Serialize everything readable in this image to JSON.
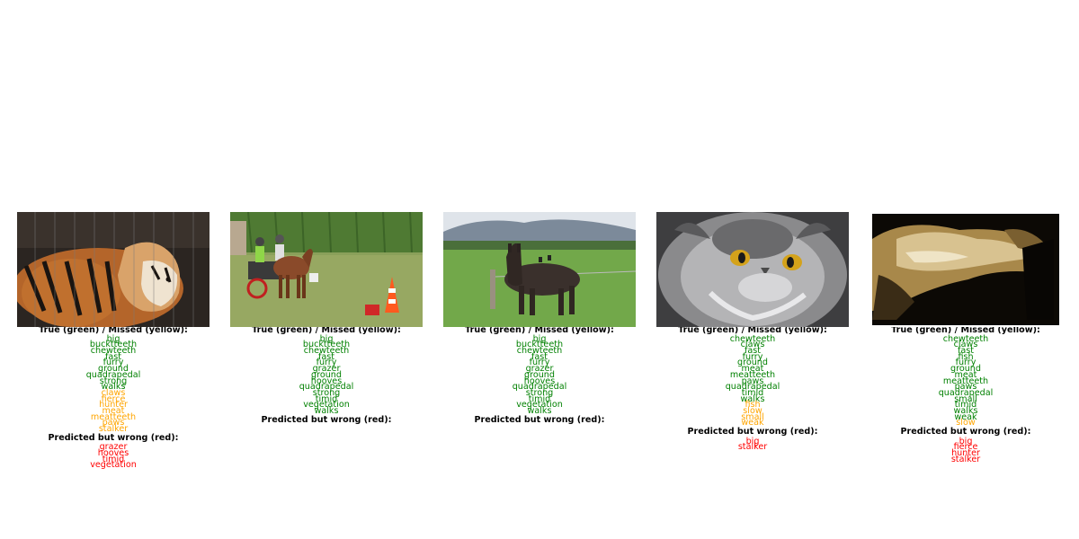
{
  "colors": {
    "true": "#008000",
    "missed": "#ffa500",
    "wrong": "#ff0000"
  },
  "panels": [
    {
      "image": "tiger-behind-bars",
      "header_true_missed": "True (green) / Missed (yellow):",
      "true_labels": [
        "big",
        "bucktteeth",
        "chewteeth",
        "fast",
        "furry",
        "ground",
        "quadrapedal",
        "strong",
        "walks"
      ],
      "missed_labels": [
        "claws",
        "fierce",
        "hunter",
        "meat",
        "meatteeth",
        "paws",
        "stalker"
      ],
      "header_wrong": "Predicted but wrong (red):",
      "wrong_labels": [
        "grazer",
        "hooves",
        "timid",
        "vegetation"
      ]
    },
    {
      "image": "pony-cart-field",
      "header_true_missed": "True (green) / Missed (yellow):",
      "true_labels": [
        "big",
        "bucktteeth",
        "chewteeth",
        "fast",
        "furry",
        "grazer",
        "ground",
        "hooves",
        "quadrapedal",
        "strong",
        "timid",
        "vegetation",
        "walks"
      ],
      "missed_labels": [],
      "header_wrong": "Predicted but wrong (red):",
      "wrong_labels": []
    },
    {
      "image": "horse-green-pasture",
      "header_true_missed": "True (green) / Missed (yellow):",
      "true_labels": [
        "big",
        "bucktteeth",
        "chewteeth",
        "fast",
        "furry",
        "grazer",
        "ground",
        "hooves",
        "quadrapedal",
        "strong",
        "timid",
        "vegetation",
        "walks"
      ],
      "missed_labels": [],
      "header_wrong": "Predicted but wrong (red):",
      "wrong_labels": []
    },
    {
      "image": "persian-cat-face",
      "header_true_missed": "True (green) / Missed (yellow):",
      "true_labels": [
        "chewteeth",
        "claws",
        "fast",
        "furry",
        "ground",
        "meat",
        "meatteeth",
        "paws",
        "quadrapedal",
        "timid",
        "walks"
      ],
      "missed_labels": [
        "fish",
        "slow",
        "small",
        "weak"
      ],
      "header_wrong": "Predicted but wrong (red):",
      "wrong_labels": [
        "big",
        "stalker"
      ]
    },
    {
      "image": "cat-sepia-lying",
      "header_true_missed": "True (green) / Missed (yellow):",
      "true_labels": [
        "chewteeth",
        "claws",
        "fast",
        "fish",
        "furry",
        "ground",
        "meat",
        "meatteeth",
        "paws",
        "quadrapedal",
        "small",
        "timid",
        "walks",
        "weak"
      ],
      "missed_labels": [
        "slow"
      ],
      "header_wrong": "Predicted but wrong (red):",
      "wrong_labels": [
        "big",
        "fierce",
        "hunter",
        "stalker"
      ]
    }
  ]
}
